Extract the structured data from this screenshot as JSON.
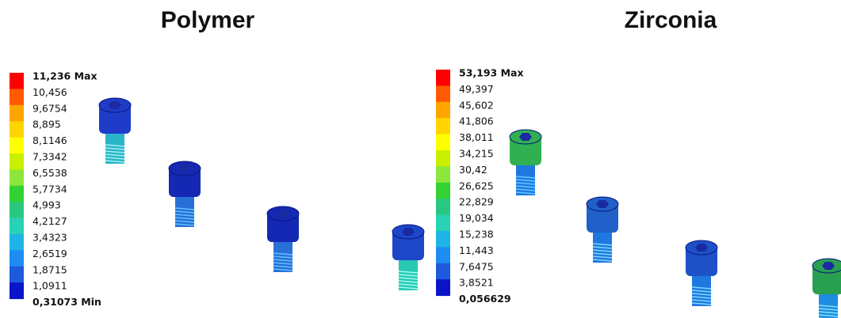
{
  "panels": [
    {
      "title": "Polymer",
      "legend": {
        "labels": [
          "11,236 Max",
          "10,456",
          "9,6754",
          "8,895",
          "8,1146",
          "7,3342",
          "6,5538",
          "5,7734",
          "4,993",
          "4,2127",
          "3,4323",
          "2,6519",
          "1,8715",
          "1,0911",
          "0,31073 Min"
        ],
        "colors": [
          "#ff0000",
          "#ff5a00",
          "#ffa500",
          "#ffd400",
          "#ffff00",
          "#c8f000",
          "#8ce63c",
          "#32d232",
          "#28c882",
          "#28d2b4",
          "#1eb4e6",
          "#1e8cf0",
          "#1e5adc",
          "#0a14c8"
        ]
      }
    },
    {
      "title": "Zirconia",
      "legend": {
        "labels": [
          "53,193 Max",
          "49,397",
          "45,602",
          "41,806",
          "38,011",
          "34,215",
          "30,42",
          "26,625",
          "22,829",
          "19,034",
          "15,238",
          "11,443",
          "7,6475",
          "3,8521",
          "0,056629"
        ],
        "colors": [
          "#ff0000",
          "#ff5a00",
          "#ffa500",
          "#ffd400",
          "#ffff00",
          "#c8f000",
          "#8ce63c",
          "#32d232",
          "#28c882",
          "#28d2b4",
          "#1eb4e6",
          "#1e8cf0",
          "#1e5adc",
          "#0a14c8"
        ]
      }
    }
  ]
}
